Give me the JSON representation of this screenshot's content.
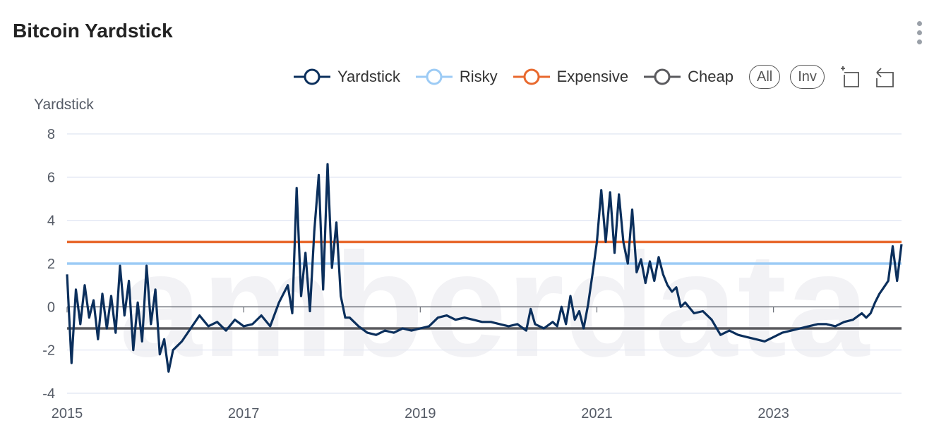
{
  "header": {
    "title": "Bitcoin Yardstick"
  },
  "watermark": "amberdata",
  "legend": [
    {
      "label": "Yardstick",
      "color": "#0b2f5c"
    },
    {
      "label": "Risky",
      "color": "#9ccbf5"
    },
    {
      "label": "Expensive",
      "color": "#e8692e"
    },
    {
      "label": "Cheap",
      "color": "#5a5a5e"
    }
  ],
  "toolbar": {
    "all_label": "All",
    "inv_label": "Inv",
    "zoom_icon": "zoom-select-icon",
    "reset_icon": "zoom-reset-icon"
  },
  "chart_data": {
    "type": "line",
    "ylabel": "Yardstick",
    "ylim": [
      -4,
      8
    ],
    "yticks": [
      -4,
      -2,
      0,
      2,
      4,
      6,
      8
    ],
    "xlim": [
      2015.0,
      2024.45
    ],
    "xticks": [
      2015,
      2017,
      2019,
      2021,
      2023
    ],
    "grid": true,
    "reference_lines": [
      {
        "name": "Risky",
        "value": 2,
        "color": "#9ccbf5"
      },
      {
        "name": "Expensive",
        "value": 3,
        "color": "#e8692e"
      },
      {
        "name": "Cheap",
        "value": -1,
        "color": "#5a5a5e"
      }
    ],
    "series": [
      {
        "name": "Yardstick",
        "color": "#0b2f5c",
        "x": [
          2015.0,
          2015.05,
          2015.1,
          2015.15,
          2015.2,
          2015.25,
          2015.3,
          2015.35,
          2015.4,
          2015.45,
          2015.5,
          2015.55,
          2015.6,
          2015.65,
          2015.7,
          2015.75,
          2015.8,
          2015.85,
          2015.9,
          2015.95,
          2016.0,
          2016.05,
          2016.1,
          2016.15,
          2016.2,
          2016.3,
          2016.4,
          2016.5,
          2016.6,
          2016.7,
          2016.8,
          2016.9,
          2017.0,
          2017.1,
          2017.2,
          2017.3,
          2017.4,
          2017.5,
          2017.55,
          2017.6,
          2017.65,
          2017.7,
          2017.75,
          2017.8,
          2017.85,
          2017.9,
          2017.95,
          2018.0,
          2018.05,
          2018.1,
          2018.15,
          2018.2,
          2018.3,
          2018.4,
          2018.5,
          2018.6,
          2018.7,
          2018.8,
          2018.9,
          2019.0,
          2019.1,
          2019.2,
          2019.3,
          2019.4,
          2019.5,
          2019.6,
          2019.7,
          2019.8,
          2019.9,
          2020.0,
          2020.1,
          2020.2,
          2020.25,
          2020.3,
          2020.4,
          2020.5,
          2020.55,
          2020.6,
          2020.65,
          2020.7,
          2020.75,
          2020.8,
          2020.85,
          2020.9,
          2020.95,
          2021.0,
          2021.05,
          2021.1,
          2021.15,
          2021.2,
          2021.25,
          2021.3,
          2021.35,
          2021.4,
          2021.45,
          2021.5,
          2021.55,
          2021.6,
          2021.65,
          2021.7,
          2021.75,
          2021.8,
          2021.85,
          2021.9,
          2021.95,
          2022.0,
          2022.1,
          2022.2,
          2022.3,
          2022.4,
          2022.5,
          2022.6,
          2022.7,
          2022.8,
          2022.9,
          2023.0,
          2023.1,
          2023.2,
          2023.3,
          2023.4,
          2023.5,
          2023.6,
          2023.7,
          2023.8,
          2023.9,
          2024.0,
          2024.05,
          2024.1,
          2024.15,
          2024.2,
          2024.25,
          2024.3,
          2024.35,
          2024.4,
          2024.45
        ],
        "y": [
          1.5,
          -2.6,
          0.8,
          -0.8,
          1.0,
          -0.5,
          0.3,
          -1.5,
          0.6,
          -1.0,
          0.5,
          -1.2,
          1.9,
          -0.4,
          1.2,
          -2.0,
          0.2,
          -1.6,
          1.9,
          -0.8,
          0.8,
          -2.2,
          -1.5,
          -3.0,
          -2.0,
          -1.6,
          -1.0,
          -0.4,
          -0.9,
          -0.7,
          -1.1,
          -0.6,
          -0.9,
          -0.8,
          -0.4,
          -0.9,
          0.2,
          1.0,
          -0.3,
          5.5,
          0.5,
          2.5,
          -0.2,
          3.5,
          6.1,
          0.8,
          6.6,
          1.8,
          3.9,
          0.5,
          -0.5,
          -0.5,
          -0.9,
          -1.2,
          -1.3,
          -1.1,
          -1.2,
          -1.0,
          -1.1,
          -1.0,
          -0.9,
          -0.5,
          -0.4,
          -0.6,
          -0.5,
          -0.6,
          -0.7,
          -0.7,
          -0.8,
          -0.9,
          -0.8,
          -1.1,
          -0.1,
          -0.8,
          -1.0,
          -0.7,
          -0.9,
          0.0,
          -0.8,
          0.5,
          -0.6,
          -0.2,
          -1.0,
          0.1,
          1.5,
          3.0,
          5.4,
          3.0,
          5.3,
          2.5,
          5.2,
          3.0,
          2.0,
          4.5,
          1.6,
          2.2,
          1.1,
          2.1,
          1.2,
          2.3,
          1.5,
          1.0,
          0.7,
          0.9,
          0.0,
          0.2,
          -0.3,
          -0.2,
          -0.6,
          -1.3,
          -1.1,
          -1.3,
          -1.4,
          -1.5,
          -1.6,
          -1.4,
          -1.2,
          -1.1,
          -1.0,
          -0.9,
          -0.8,
          -0.8,
          -0.9,
          -0.7,
          -0.6,
          -0.3,
          -0.5,
          -0.3,
          0.2,
          0.6,
          0.9,
          1.2,
          2.8,
          1.2,
          2.9
        ]
      }
    ]
  }
}
